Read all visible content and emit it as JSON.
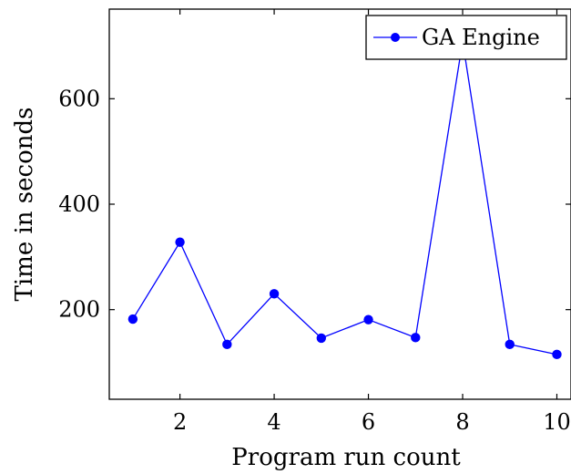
{
  "chart_data": {
    "type": "line",
    "title": "",
    "xlabel": "Program run count",
    "ylabel": "Time in seconds",
    "xlim": [
      0.5,
      10.3
    ],
    "ylim": [
      30,
      770
    ],
    "xticks": [
      2,
      4,
      6,
      8,
      10
    ],
    "yticks": [
      200,
      400,
      600
    ],
    "grid": false,
    "legend_position": "top-right",
    "series": [
      {
        "name": "GA Engine",
        "color": "#0000ff",
        "marker": "circle",
        "x": [
          1,
          2,
          3,
          4,
          5,
          6,
          7,
          8,
          9,
          10
        ],
        "y": [
          182,
          328,
          134,
          230,
          146,
          181,
          147,
          709,
          134,
          115
        ]
      }
    ]
  }
}
